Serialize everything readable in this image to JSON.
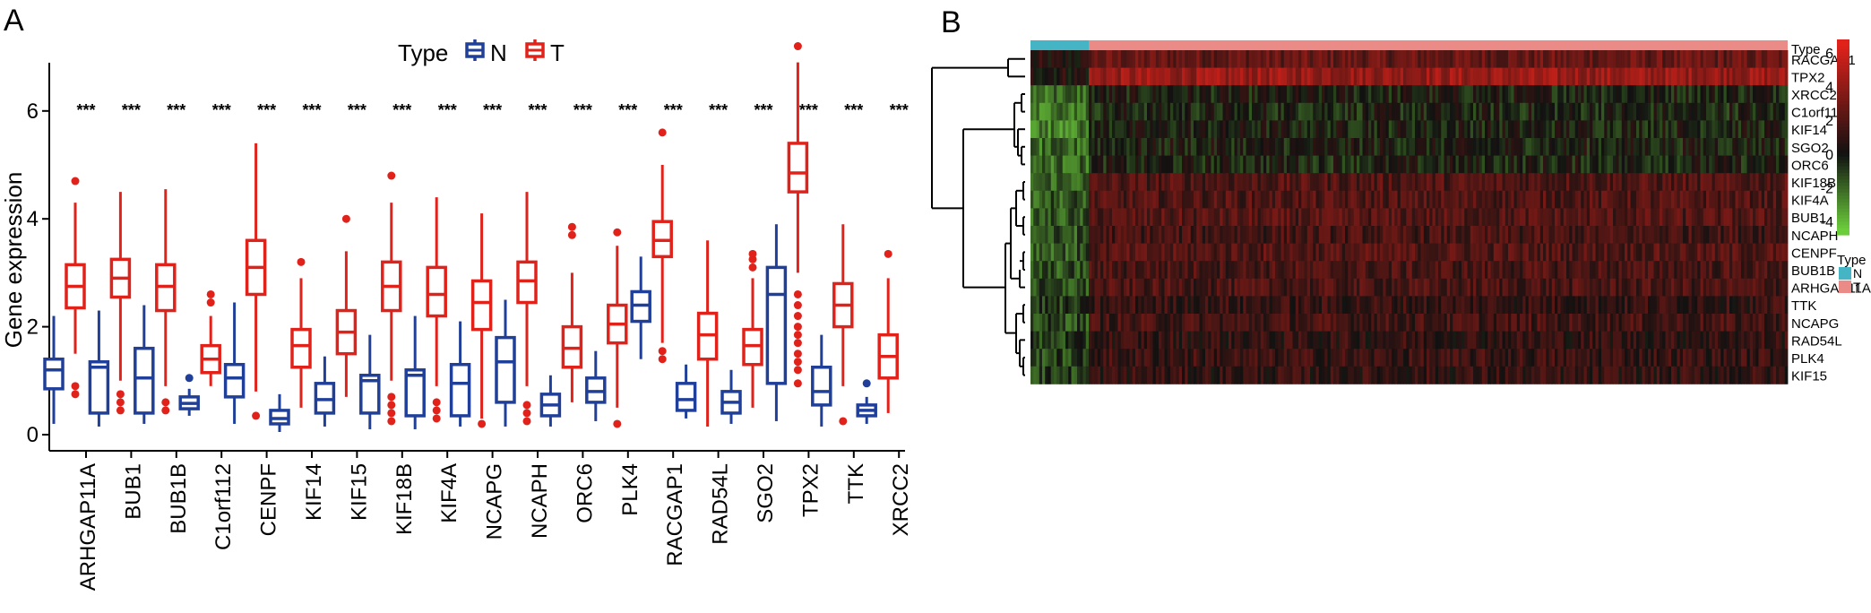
{
  "panels": {
    "a_label": "A",
    "b_label": "B"
  },
  "colors": {
    "N": "#1f3f99",
    "T": "#e0221b",
    "type_bar_N": "#45b4c5",
    "type_bar_T": "#eb8b87"
  },
  "chart_data": [
    {
      "type": "box",
      "legend": {
        "title": "Type",
        "placement": "top-center",
        "entries": [
          "N",
          "T"
        ]
      },
      "ylabel": "Gene expression",
      "ylim": [
        -0.2,
        7.4
      ],
      "yticks": [
        0,
        2,
        4,
        6
      ],
      "grid": false,
      "categories": [
        "ARHGAP11A",
        "BUB1",
        "BUB1B",
        "C1orf112",
        "CENPF",
        "KIF14",
        "KIF15",
        "KIF18B",
        "KIF4A",
        "NCAPG",
        "NCAPH",
        "ORC6",
        "PLK4",
        "RACGAP1",
        "RAD54L",
        "SGO2",
        "TPX2",
        "TTK",
        "XRCC2"
      ],
      "significance": [
        "***",
        "***",
        "***",
        "***",
        "***",
        "***",
        "***",
        "***",
        "***",
        "***",
        "***",
        "***",
        "***",
        "***",
        "***",
        "***",
        "***",
        "***",
        "***"
      ],
      "series": [
        {
          "name": "N",
          "boxes": [
            {
              "min": 0.2,
              "q1": 0.85,
              "median": 1.2,
              "q3": 1.4,
              "max": 2.2,
              "outliers": []
            },
            {
              "min": 0.15,
              "q1": 0.4,
              "median": 1.25,
              "q3": 1.35,
              "max": 2.3,
              "outliers": []
            },
            {
              "min": 0.2,
              "q1": 0.4,
              "median": 1.05,
              "q3": 1.6,
              "max": 2.4,
              "outliers": []
            },
            {
              "min": 0.35,
              "q1": 0.48,
              "median": 0.58,
              "q3": 0.7,
              "max": 0.85,
              "outliers": [
                1.05
              ]
            },
            {
              "min": 0.2,
              "q1": 0.7,
              "median": 1.05,
              "q3": 1.3,
              "max": 2.45,
              "outliers": []
            },
            {
              "min": 0.05,
              "q1": 0.2,
              "median": 0.3,
              "q3": 0.45,
              "max": 0.75,
              "outliers": []
            },
            {
              "min": 0.15,
              "q1": 0.4,
              "median": 0.65,
              "q3": 0.95,
              "max": 1.45,
              "outliers": []
            },
            {
              "min": 0.1,
              "q1": 0.4,
              "median": 1.0,
              "q3": 1.1,
              "max": 1.85,
              "outliers": []
            },
            {
              "min": 0.1,
              "q1": 0.35,
              "median": 1.1,
              "q3": 1.2,
              "max": 2.2,
              "outliers": []
            },
            {
              "min": 0.15,
              "q1": 0.35,
              "median": 0.95,
              "q3": 1.3,
              "max": 2.1,
              "outliers": []
            },
            {
              "min": 0.15,
              "q1": 0.6,
              "median": 1.35,
              "q3": 1.8,
              "max": 2.5,
              "outliers": []
            },
            {
              "min": 0.15,
              "q1": 0.35,
              "median": 0.55,
              "q3": 0.75,
              "max": 1.1,
              "outliers": []
            },
            {
              "min": 0.25,
              "q1": 0.6,
              "median": 0.8,
              "q3": 1.05,
              "max": 1.55,
              "outliers": []
            },
            {
              "min": 1.4,
              "q1": 2.1,
              "median": 2.4,
              "q3": 2.65,
              "max": 3.3,
              "outliers": []
            },
            {
              "min": 0.3,
              "q1": 0.45,
              "median": 0.65,
              "q3": 0.95,
              "max": 1.3,
              "outliers": []
            },
            {
              "min": 0.2,
              "q1": 0.4,
              "median": 0.6,
              "q3": 0.8,
              "max": 1.2,
              "outliers": []
            },
            {
              "min": 0.25,
              "q1": 0.95,
              "median": 2.6,
              "q3": 3.1,
              "max": 3.9,
              "outliers": []
            },
            {
              "min": 0.15,
              "q1": 0.55,
              "median": 0.8,
              "q3": 1.25,
              "max": 1.85,
              "outliers": []
            },
            {
              "min": 0.2,
              "q1": 0.35,
              "median": 0.45,
              "q3": 0.55,
              "max": 0.7,
              "outliers": [
                0.95
              ]
            }
          ]
        },
        {
          "name": "T",
          "boxes": [
            {
              "min": 1.5,
              "q1": 2.35,
              "median": 2.75,
              "q3": 3.15,
              "max": 4.3,
              "outliers": [
                0.9,
                0.75,
                4.7
              ]
            },
            {
              "min": 1.0,
              "q1": 2.55,
              "median": 2.9,
              "q3": 3.25,
              "max": 4.5,
              "outliers": [
                0.75,
                0.6,
                0.45
              ]
            },
            {
              "min": 0.9,
              "q1": 2.3,
              "median": 2.75,
              "q3": 3.15,
              "max": 4.55,
              "outliers": [
                0.6,
                0.45
              ]
            },
            {
              "min": 0.9,
              "q1": 1.15,
              "median": 1.4,
              "q3": 1.65,
              "max": 2.2,
              "outliers": [
                2.45,
                2.6
              ]
            },
            {
              "min": 0.8,
              "q1": 2.6,
              "median": 3.1,
              "q3": 3.6,
              "max": 5.4,
              "outliers": [
                0.35
              ]
            },
            {
              "min": 0.5,
              "q1": 1.25,
              "median": 1.65,
              "q3": 1.95,
              "max": 2.9,
              "outliers": [
                3.2
              ]
            },
            {
              "min": 0.7,
              "q1": 1.5,
              "median": 1.9,
              "q3": 2.3,
              "max": 3.4,
              "outliers": [
                4.0
              ]
            },
            {
              "min": 1.0,
              "q1": 2.3,
              "median": 2.75,
              "q3": 3.2,
              "max": 4.3,
              "outliers": [
                0.7,
                0.55,
                0.4,
                0.25,
                4.8
              ]
            },
            {
              "min": 0.9,
              "q1": 2.2,
              "median": 2.6,
              "q3": 3.1,
              "max": 4.4,
              "outliers": [
                0.6,
                0.45,
                0.3
              ]
            },
            {
              "min": 0.3,
              "q1": 1.95,
              "median": 2.45,
              "q3": 2.85,
              "max": 4.1,
              "outliers": [
                0.2
              ]
            },
            {
              "min": 0.9,
              "q1": 2.45,
              "median": 2.85,
              "q3": 3.2,
              "max": 4.5,
              "outliers": [
                0.55,
                0.4,
                0.25
              ]
            },
            {
              "min": 0.6,
              "q1": 1.25,
              "median": 1.6,
              "q3": 2.0,
              "max": 3.0,
              "outliers": [
                3.7,
                3.85
              ]
            },
            {
              "min": 0.5,
              "q1": 1.7,
              "median": 2.05,
              "q3": 2.4,
              "max": 3.5,
              "outliers": [
                0.2,
                3.75
              ]
            },
            {
              "min": 1.7,
              "q1": 3.3,
              "median": 3.6,
              "q3": 3.95,
              "max": 5.0,
              "outliers": [
                1.55,
                1.4,
                5.6
              ]
            },
            {
              "min": 0.15,
              "q1": 1.4,
              "median": 1.85,
              "q3": 2.25,
              "max": 3.6,
              "outliers": []
            },
            {
              "min": 0.5,
              "q1": 1.3,
              "median": 1.65,
              "q3": 1.95,
              "max": 2.9,
              "outliers": [
                3.1,
                3.25,
                3.35
              ]
            },
            {
              "min": 3.0,
              "q1": 4.5,
              "median": 4.85,
              "q3": 5.4,
              "max": 6.9,
              "outliers": [
                2.6,
                2.4,
                2.2,
                2.0,
                1.85,
                1.7,
                1.5,
                1.35,
                1.2,
                0.95,
                7.2
              ]
            },
            {
              "min": 0.9,
              "q1": 2.0,
              "median": 2.4,
              "q3": 2.8,
              "max": 3.9,
              "outliers": [
                0.25
              ]
            },
            {
              "min": 0.4,
              "q1": 1.05,
              "median": 1.45,
              "q3": 1.85,
              "max": 2.9,
              "outliers": [
                3.35
              ]
            }
          ]
        }
      ]
    },
    {
      "type": "heatmap",
      "annotation_label": "Type",
      "rows": [
        "RACGAP1",
        "TPX2",
        "XRCC2",
        "C1orf112",
        "KIF14",
        "SGO2",
        "ORC6",
        "KIF18B",
        "KIF4A",
        "BUB1",
        "NCAPH",
        "CENPF",
        "BUB1B",
        "ARHGAP11A",
        "TTK",
        "NCAPG",
        "RAD54L",
        "PLK4",
        "KIF15"
      ],
      "groups": [
        {
          "name": "N",
          "fraction": 0.078
        },
        {
          "name": "T",
          "fraction": 0.922
        }
      ],
      "colorbar": {
        "ticks": [
          6,
          4,
          2,
          0,
          -2,
          -4
        ],
        "low": "#6ccd3b",
        "mid": "#111111",
        "high": "#e0221b"
      },
      "legend_title": "Type",
      "legend_entries": [
        "N",
        "T"
      ],
      "row_mean_N": [
        0.3,
        0.5,
        -2.0,
        -2.2,
        -2.5,
        -2.2,
        -2.0,
        -1.8,
        -1.6,
        -1.7,
        -1.6,
        -1.6,
        -1.5,
        -1.5,
        -1.0,
        -1.3,
        -1.1,
        -1.2,
        -1.1
      ],
      "row_mean_T": [
        2.6,
        4.2,
        -0.2,
        -0.4,
        -0.2,
        -0.2,
        -0.3,
        1.9,
        1.9,
        2.0,
        1.6,
        2.0,
        1.7,
        1.7,
        1.1,
        1.5,
        1.0,
        1.2,
        1.0
      ]
    }
  ]
}
